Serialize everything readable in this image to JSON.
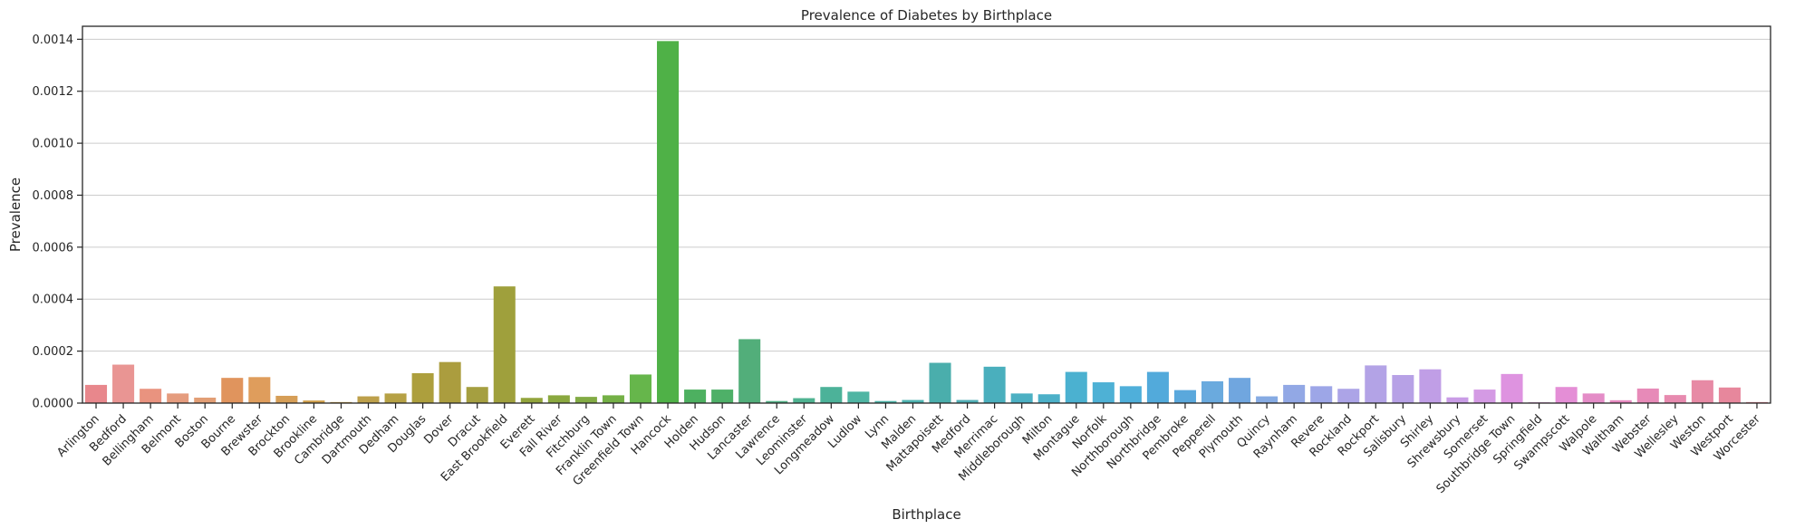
{
  "chart_data": {
    "type": "bar",
    "title": "Prevalence of Diabetes by Birthplace",
    "xlabel": "Birthplace",
    "ylabel": "Prevalence",
    "ylim": [
      0,
      0.00145
    ],
    "yticks": [
      "0.0000",
      "0.0002",
      "0.0004",
      "0.0006",
      "0.0008",
      "0.0010",
      "0.0012",
      "0.0014"
    ],
    "grid": "horizontal",
    "categories": [
      "Arlington",
      "Bedford",
      "Bellingham",
      "Belmont",
      "Boston",
      "Bourne",
      "Brewster",
      "Brockton",
      "Brookline",
      "Cambridge",
      "Dartmouth",
      "Dedham",
      "Douglas",
      "Dover",
      "Dracut",
      "East Brookfield",
      "Everett",
      "Fall River",
      "Fitchburg",
      "Franklin Town",
      "Greenfield Town",
      "Hancock",
      "Holden",
      "Hudson",
      "Lancaster",
      "Lawrence",
      "Leominster",
      "Longmeadow",
      "Ludlow",
      "Lynn",
      "Malden",
      "Mattapoisett",
      "Medford",
      "Merrimac",
      "Middleborough",
      "Milton",
      "Montague",
      "Norfolk",
      "Northborough",
      "Northbridge",
      "Pembroke",
      "Pepperell",
      "Plymouth",
      "Quincy",
      "Raynham",
      "Revere",
      "Rockland",
      "Rockport",
      "Salisbury",
      "Shirley",
      "Shrewsbury",
      "Somerset",
      "Southbridge Town",
      "Springfield",
      "Swampscott",
      "Walpole",
      "Waltham",
      "Webster",
      "Wellesley",
      "Weston",
      "Westport",
      "Worcester"
    ],
    "values": [
      7e-05,
      0.000148,
      5.5e-05,
      3.7e-05,
      2.1e-05,
      9.7e-05,
      0.0001,
      2.8e-05,
      1e-05,
      4e-06,
      2.6e-05,
      3.7e-05,
      0.000115,
      0.000158,
      6.2e-05,
      0.000449,
      2e-05,
      3e-05,
      2.4e-05,
      3e-05,
      0.00011,
      0.001393,
      5.2e-05,
      5.2e-05,
      0.000246,
      8e-06,
      1.9e-05,
      6.2e-05,
      4.4e-05,
      8e-06,
      1.2e-05,
      0.000155,
      1.2e-05,
      0.00014,
      3.7e-05,
      3.4e-05,
      0.00012,
      8e-05,
      6.5e-05,
      0.00012,
      5e-05,
      8.4e-05,
      9.7e-05,
      2.6e-05,
      7e-05,
      6.5e-05,
      5.5e-05,
      0.000145,
      0.000108,
      0.00013,
      2.2e-05,
      5.2e-05,
      0.000112,
      3e-06,
      6.2e-05,
      3.7e-05,
      1.1e-05,
      5.6e-05,
      3.1e-05,
      8.8e-05,
      6e-05,
      4e-06
    ],
    "colors": [
      "#e8878c",
      "#e99593",
      "#e9937f",
      "#e59c7e",
      "#e29e75",
      "#e0945d",
      "#df9d5c",
      "#d69e57",
      "#cf9e4a",
      "#c8a04a",
      "#bda04b",
      "#b6a145",
      "#ad9f3d",
      "#ab9d3e",
      "#a59f40",
      "#9fa03c",
      "#92a43c",
      "#8aa83f",
      "#82ab44",
      "#74b046",
      "#66b64b",
      "#4fb147",
      "#4db060",
      "#4eb068",
      "#52ae7a",
      "#52b186",
      "#4fb391",
      "#4cb299",
      "#4fb5a3",
      "#4cb3a7",
      "#4db3b0",
      "#4aaeac",
      "#50aeb5",
      "#4aafbd",
      "#4cb0c3",
      "#4cb0c8",
      "#4bb1d0",
      "#4eb1d5",
      "#4fafda",
      "#52aadb",
      "#5aa8dc",
      "#6aaade",
      "#70a6df",
      "#86abe3",
      "#92a8e5",
      "#9da6e7",
      "#aca4e7",
      "#b3a3e6",
      "#b7a1e6",
      "#c09ee6",
      "#c99ce6",
      "#d49ae4",
      "#de93e0",
      "#dc8fd9",
      "#e48ed6",
      "#e48cc7",
      "#e68ac0",
      "#e78ab8",
      "#e78aaf",
      "#e78aa5",
      "#e7879c",
      "#e88694"
    ]
  }
}
